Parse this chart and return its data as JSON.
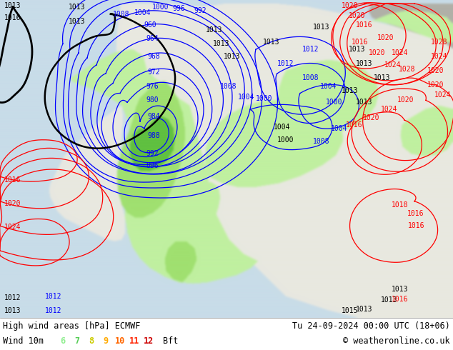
{
  "title_left": "High wind areas [hPa] ECMWF",
  "title_right": "Tu 24-09-2024 00:00 UTC (18+06)",
  "subtitle_left": "Wind 10m",
  "subtitle_right": "© weatheronline.co.uk",
  "legend_labels": [
    "6",
    "7",
    "8",
    "9",
    "10",
    "11",
    "12",
    "Bft"
  ],
  "legend_colors": [
    "#90ee90",
    "#55cc55",
    "#cccc00",
    "#ffaa00",
    "#ff6600",
    "#ff2200",
    "#cc0000",
    "#000000"
  ],
  "ocean_color": "#c8dce8",
  "land_color": "#e8e8e0",
  "wind_green_light": "#c0f0a0",
  "wind_green_mid": "#90e060",
  "wind_green_strong": "#50c030",
  "fig_width": 6.34,
  "fig_height": 4.9,
  "dpi": 100,
  "bottom_bar_color": "#ffffff",
  "text_color": "#000000",
  "title_font_size": 8.5,
  "legend_font_size": 8.5
}
